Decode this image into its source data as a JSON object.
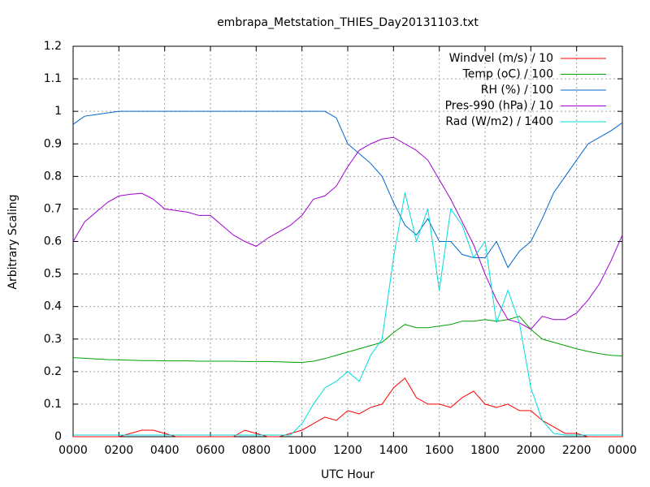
{
  "chart_data": {
    "type": "line",
    "title": "embrapa_Metstation_THIES_Day20131103.txt",
    "x_label": "UTC Hour",
    "y_label": "Arbitrary Scaling",
    "xlim": [
      0,
      24
    ],
    "xticks": [
      {
        "value": 0,
        "label": "0000"
      },
      {
        "value": 2,
        "label": "0200"
      },
      {
        "value": 4,
        "label": "0400"
      },
      {
        "value": 6,
        "label": "0600"
      },
      {
        "value": 8,
        "label": "0800"
      },
      {
        "value": 10,
        "label": "1000"
      },
      {
        "value": 12,
        "label": "1200"
      },
      {
        "value": 14,
        "label": "1400"
      },
      {
        "value": 16,
        "label": "1600"
      },
      {
        "value": 18,
        "label": "1800"
      },
      {
        "value": 20,
        "label": "2000"
      },
      {
        "value": 22,
        "label": "2200"
      },
      {
        "value": 24,
        "label": "0000"
      }
    ],
    "ylim": [
      0,
      1.2
    ],
    "yticks": [
      0,
      0.1,
      0.2,
      0.3,
      0.4,
      0.5,
      0.6,
      0.7,
      0.8,
      0.9,
      1,
      1.1,
      1.2
    ],
    "grid": true,
    "legend": "top-right",
    "x": [
      0,
      0.5,
      1,
      1.5,
      2,
      2.5,
      3,
      3.5,
      4,
      4.5,
      5,
      5.5,
      6,
      6.5,
      7,
      7.5,
      8,
      8.5,
      9,
      9.5,
      10,
      10.5,
      11,
      11.5,
      12,
      12.5,
      13,
      13.5,
      14,
      14.5,
      15,
      15.5,
      16,
      16.5,
      17,
      17.5,
      18,
      18.5,
      19,
      19.5,
      20,
      20.5,
      21,
      21.5,
      22,
      22.5,
      23,
      23.5,
      24
    ],
    "series": [
      {
        "name": "Windvel (m/s) / 10",
        "color": "#ff0000",
        "values": [
          0,
          0,
          0,
          0,
          0,
          0.01,
          0.02,
          0.02,
          0.01,
          0,
          0,
          0,
          0,
          0,
          0,
          0.02,
          0.01,
          0,
          0,
          0.01,
          0.02,
          0.04,
          0.06,
          0.05,
          0.08,
          0.07,
          0.09,
          0.1,
          0.15,
          0.18,
          0.12,
          0.1,
          0.1,
          0.09,
          0.12,
          0.14,
          0.1,
          0.09,
          0.1,
          0.08,
          0.08,
          0.05,
          0.03,
          0.01,
          0.01,
          0,
          0,
          0,
          0
        ]
      },
      {
        "name": "Temp (oC) / 100",
        "color": "#00a000",
        "values": [
          0.243,
          0.241,
          0.239,
          0.237,
          0.236,
          0.235,
          0.234,
          0.234,
          0.233,
          0.233,
          0.233,
          0.232,
          0.232,
          0.232,
          0.232,
          0.231,
          0.231,
          0.231,
          0.23,
          0.229,
          0.228,
          0.232,
          0.24,
          0.25,
          0.26,
          0.27,
          0.28,
          0.29,
          0.32,
          0.345,
          0.335,
          0.335,
          0.34,
          0.345,
          0.355,
          0.355,
          0.36,
          0.355,
          0.36,
          0.37,
          0.33,
          0.3,
          0.29,
          0.28,
          0.27,
          0.262,
          0.255,
          0.25,
          0.248
        ]
      },
      {
        "name": "RH (%) / 100",
        "color": "#0066cc",
        "values": [
          0.96,
          0.985,
          0.99,
          0.995,
          1,
          1,
          1,
          1,
          1,
          1,
          1,
          1,
          1,
          1,
          1,
          1,
          1,
          1,
          1,
          1,
          1,
          1,
          1,
          0.98,
          0.9,
          0.87,
          0.84,
          0.8,
          0.72,
          0.65,
          0.62,
          0.67,
          0.6,
          0.6,
          0.56,
          0.55,
          0.55,
          0.6,
          0.52,
          0.57,
          0.6,
          0.67,
          0.75,
          0.8,
          0.85,
          0.9,
          0.92,
          0.94,
          0.965
        ]
      },
      {
        "name": "Pres-990 (hPa) / 10",
        "color": "#a000d0",
        "values": [
          0.6,
          0.66,
          0.69,
          0.72,
          0.74,
          0.745,
          0.748,
          0.73,
          0.7,
          0.695,
          0.69,
          0.68,
          0.68,
          0.65,
          0.62,
          0.6,
          0.585,
          0.61,
          0.63,
          0.65,
          0.68,
          0.73,
          0.74,
          0.77,
          0.83,
          0.88,
          0.9,
          0.915,
          0.92,
          0.9,
          0.88,
          0.85,
          0.79,
          0.73,
          0.66,
          0.59,
          0.5,
          0.42,
          0.36,
          0.35,
          0.33,
          0.37,
          0.36,
          0.36,
          0.38,
          0.42,
          0.47,
          0.54,
          0.62
        ]
      },
      {
        "name": "Rad (W/m2) / 1400",
        "color": "#00dddd",
        "values": [
          0.005,
          0.005,
          0.005,
          0.005,
          0.005,
          0.005,
          0.005,
          0.005,
          0.005,
          0.005,
          0.005,
          0.005,
          0.005,
          0.005,
          0.005,
          0.005,
          0.005,
          0.005,
          0.005,
          0.005,
          0.04,
          0.1,
          0.15,
          0.17,
          0.2,
          0.17,
          0.25,
          0.3,
          0.55,
          0.75,
          0.6,
          0.7,
          0.45,
          0.7,
          0.65,
          0.55,
          0.6,
          0.35,
          0.45,
          0.35,
          0.15,
          0.05,
          0.01,
          0.005,
          0.005,
          0.005,
          0.005,
          0.005,
          0.005
        ]
      }
    ]
  }
}
